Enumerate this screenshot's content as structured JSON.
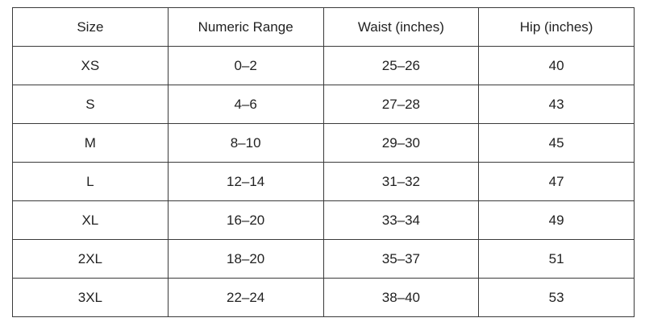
{
  "table": {
    "header": [
      "Size",
      "Numeric Range",
      "Waist (inches)",
      "Hip (inches)"
    ],
    "rows": [
      [
        "XS",
        "0–2",
        "25–26",
        "40"
      ],
      [
        "S",
        "4–6",
        "27–28",
        "43"
      ],
      [
        "M",
        "8–10",
        "29–30",
        "45"
      ],
      [
        "L",
        "12–14",
        "31–32",
        "47"
      ],
      [
        "XL",
        "16–20",
        "33–34",
        "49"
      ],
      [
        "2XL",
        "18–20",
        "35–37",
        "51"
      ],
      [
        "3XL",
        "22–24",
        "38–40",
        "53"
      ]
    ]
  }
}
